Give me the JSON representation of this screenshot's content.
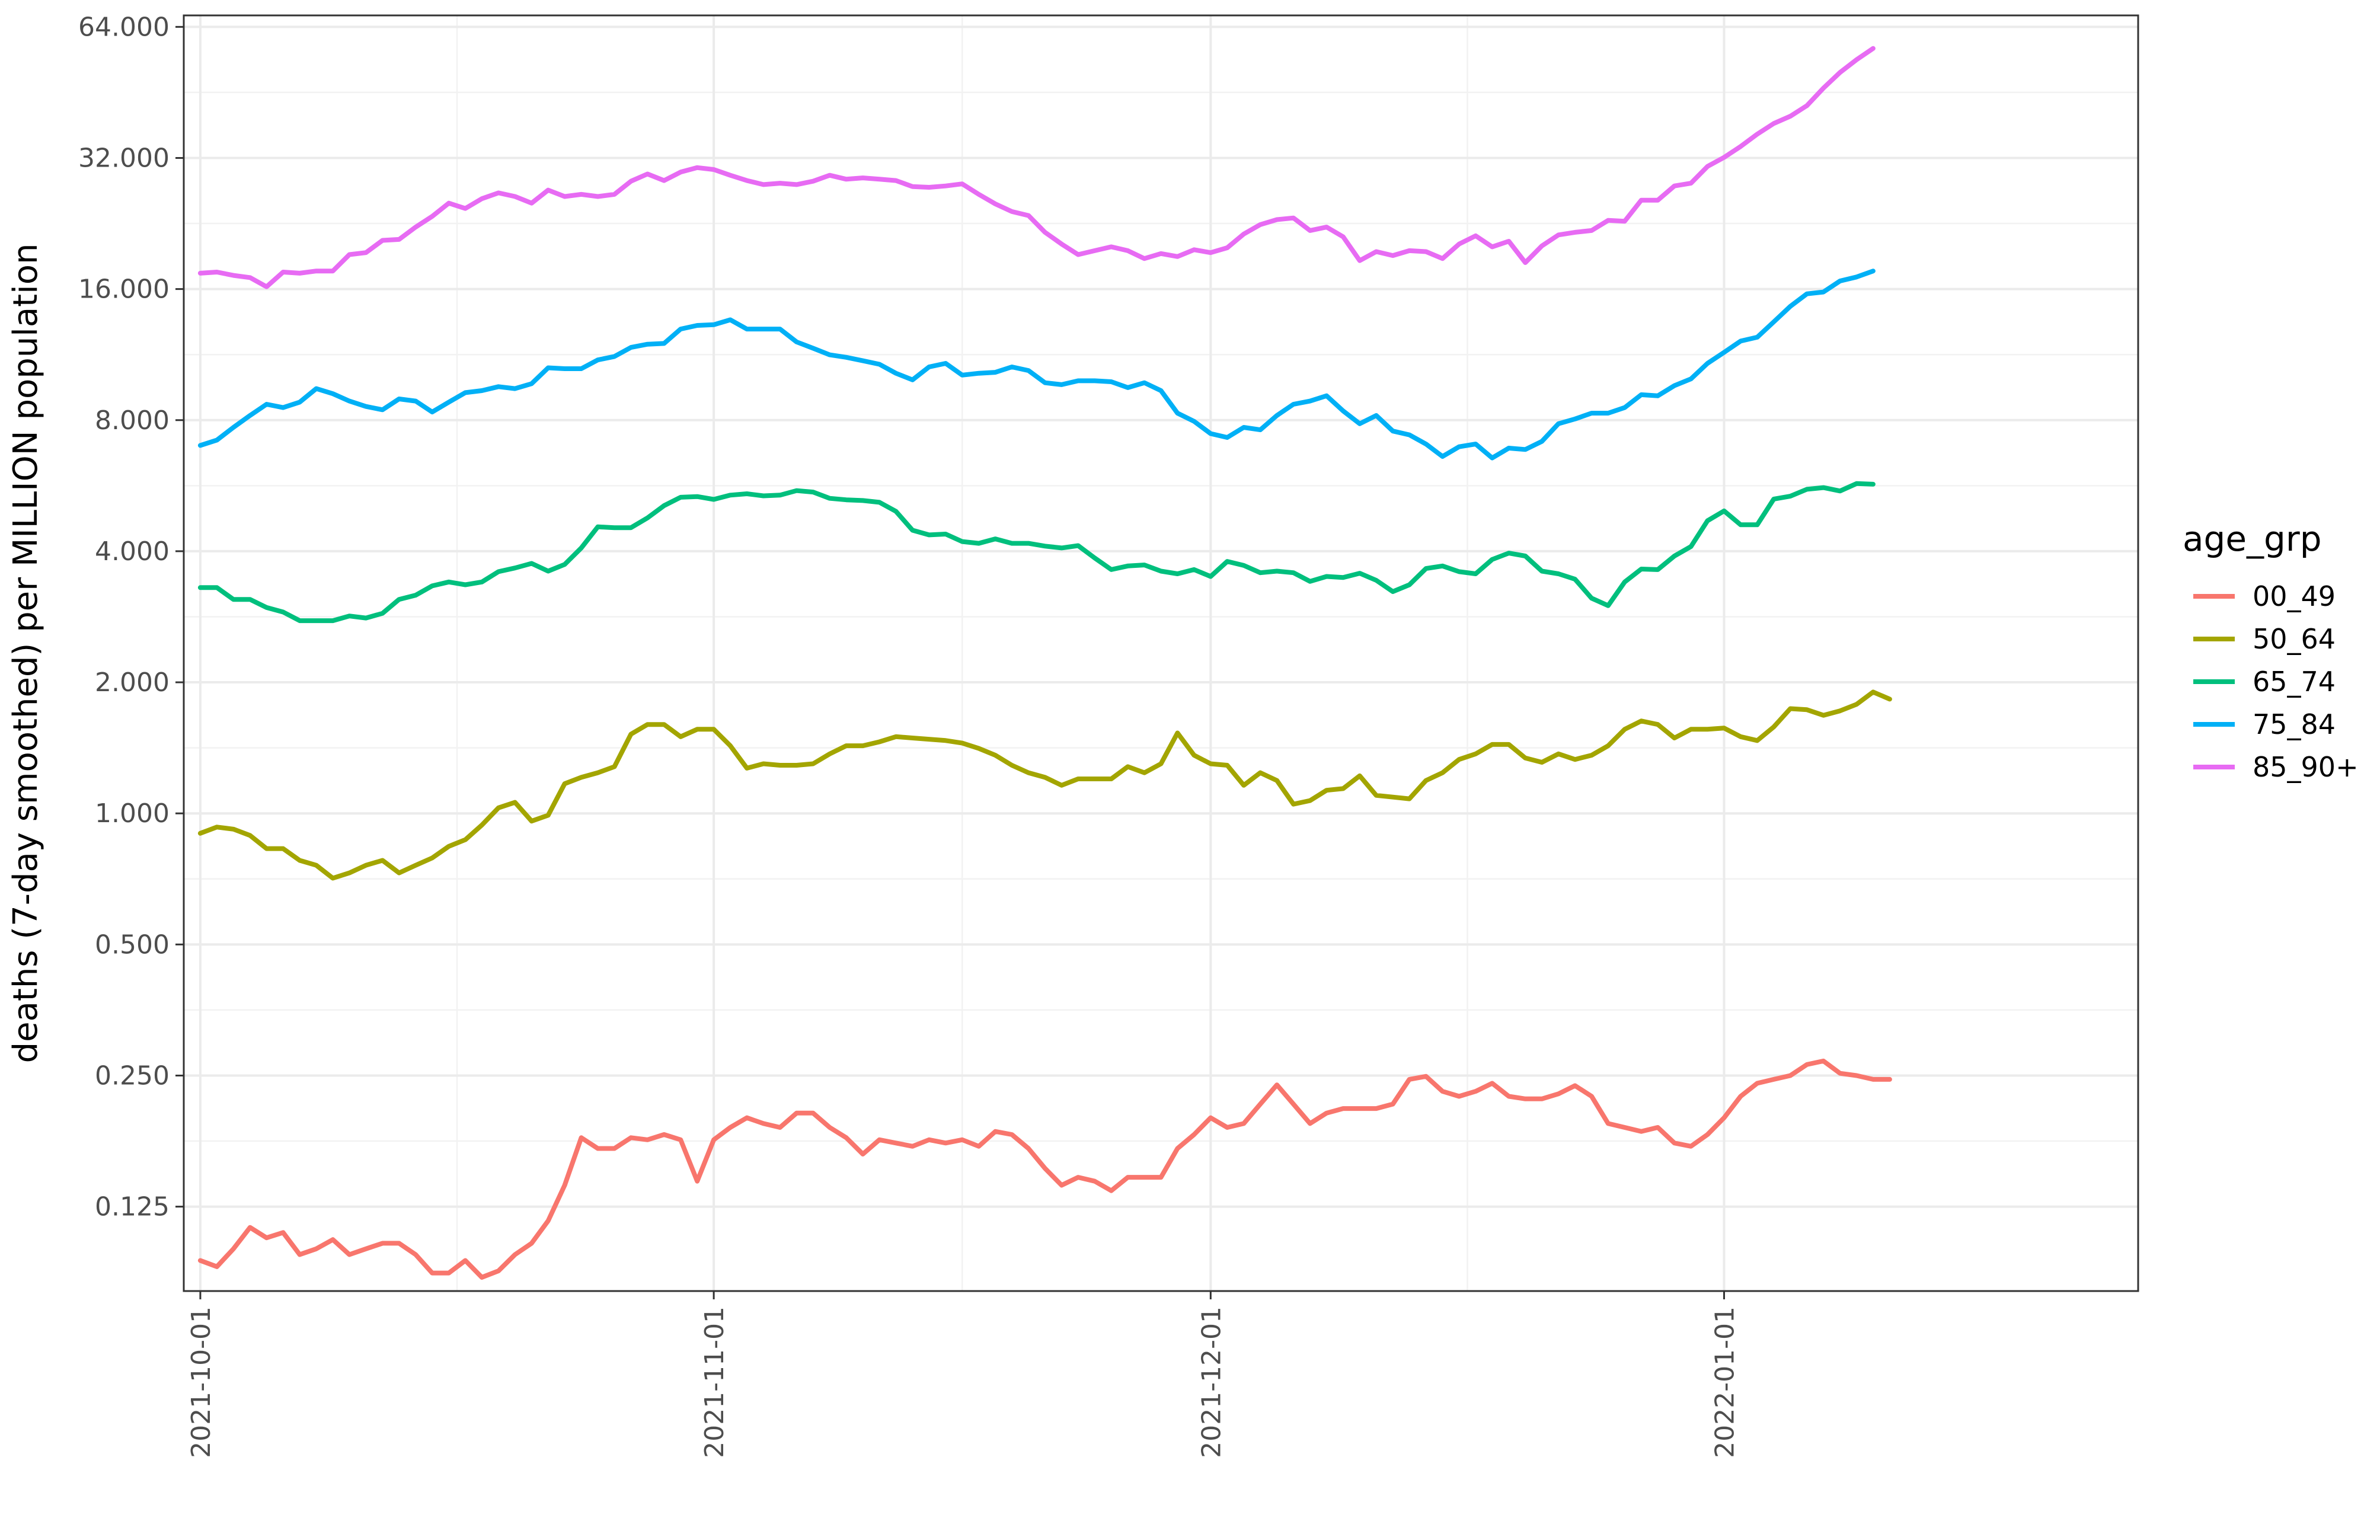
{
  "chart_data": {
    "type": "line",
    "xlabel": "",
    "ylabel": "deaths (7-day smoothed) per MILLION population",
    "y_scale": "log2",
    "ylim": [
      0.08,
      68
    ],
    "xlim": [
      "2021-09-30",
      "2022-01-26"
    ],
    "grid": true,
    "legend_position": "right",
    "legend_title": "age_grp",
    "x_ticks": [
      "2021-10-01",
      "2021-11-01",
      "2021-12-01",
      "2022-01-01"
    ],
    "y_ticks": [
      {
        "value": 0.125,
        "label": "0.125"
      },
      {
        "value": 0.25,
        "label": "0.250"
      },
      {
        "value": 0.5,
        "label": "0.500"
      },
      {
        "value": 1,
        "label": "1.000"
      },
      {
        "value": 2,
        "label": "2.000"
      },
      {
        "value": 4,
        "label": "4.000"
      },
      {
        "value": 8,
        "label": "8.000"
      },
      {
        "value": 16,
        "label": "16.000"
      },
      {
        "value": 32,
        "label": "32.000"
      },
      {
        "value": 64,
        "label": "64.000"
      }
    ],
    "x_start_date": "2021-10-01",
    "x_step_days": 1,
    "series": [
      {
        "name": "00_49",
        "color": "#F8766D",
        "values": [
          0.094,
          0.091,
          0.1,
          0.112,
          0.106,
          0.109,
          0.097,
          0.1,
          0.105,
          0.097,
          0.1,
          0.103,
          0.103,
          0.097,
          0.088,
          0.088,
          0.094,
          0.086,
          0.089,
          0.097,
          0.103,
          0.116,
          0.14,
          0.18,
          0.17,
          0.17,
          0.18,
          0.178,
          0.183,
          0.178,
          0.143,
          0.178,
          0.19,
          0.2,
          0.194,
          0.19,
          0.205,
          0.205,
          0.19,
          0.18,
          0.165,
          0.178,
          0.175,
          0.172,
          0.178,
          0.175,
          0.178,
          0.172,
          0.186,
          0.183,
          0.17,
          0.153,
          0.14,
          0.146,
          0.143,
          0.136,
          0.146,
          0.146,
          0.146,
          0.17,
          0.183,
          0.2,
          0.19,
          0.194,
          0.215,
          0.238,
          0.215,
          0.194,
          0.205,
          0.21,
          0.21,
          0.21,
          0.215,
          0.245,
          0.249,
          0.23,
          0.224,
          0.23,
          0.24,
          0.224,
          0.221,
          0.221,
          0.227,
          0.237,
          0.224,
          0.194,
          0.19,
          0.186,
          0.19,
          0.175,
          0.172,
          0.183,
          0.2,
          0.224,
          0.24,
          0.245,
          0.25,
          0.265,
          0.27,
          0.253,
          0.25,
          0.245,
          0.245
        ]
      },
      {
        "name": "50_64",
        "color": "#A3A500",
        "values": [
          0.9,
          0.93,
          0.92,
          0.89,
          0.83,
          0.83,
          0.78,
          0.76,
          0.71,
          0.73,
          0.76,
          0.78,
          0.73,
          0.76,
          0.79,
          0.84,
          0.87,
          0.94,
          1.03,
          1.06,
          0.96,
          0.99,
          1.17,
          1.21,
          1.24,
          1.28,
          1.52,
          1.6,
          1.6,
          1.5,
          1.56,
          1.56,
          1.43,
          1.27,
          1.3,
          1.29,
          1.29,
          1.3,
          1.37,
          1.43,
          1.43,
          1.46,
          1.5,
          1.49,
          1.48,
          1.47,
          1.45,
          1.41,
          1.36,
          1.29,
          1.24,
          1.21,
          1.16,
          1.2,
          1.2,
          1.2,
          1.28,
          1.24,
          1.3,
          1.53,
          1.36,
          1.3,
          1.29,
          1.16,
          1.24,
          1.19,
          1.05,
          1.07,
          1.13,
          1.14,
          1.22,
          1.1,
          1.09,
          1.08,
          1.19,
          1.24,
          1.33,
          1.37,
          1.44,
          1.44,
          1.34,
          1.31,
          1.37,
          1.33,
          1.36,
          1.43,
          1.56,
          1.63,
          1.6,
          1.49,
          1.56,
          1.56,
          1.57,
          1.5,
          1.47,
          1.58,
          1.74,
          1.73,
          1.68,
          1.72,
          1.78,
          1.9,
          1.83
        ]
      },
      {
        "name": "65_74",
        "color": "#00BF7D",
        "values": [
          3.3,
          3.3,
          3.1,
          3.1,
          2.97,
          2.9,
          2.77,
          2.77,
          2.77,
          2.84,
          2.81,
          2.88,
          3.1,
          3.17,
          3.33,
          3.4,
          3.35,
          3.4,
          3.59,
          3.66,
          3.75,
          3.6,
          3.73,
          4.07,
          4.55,
          4.53,
          4.53,
          4.77,
          5.09,
          5.32,
          5.34,
          5.26,
          5.38,
          5.42,
          5.36,
          5.38,
          5.51,
          5.47,
          5.29,
          5.25,
          5.23,
          5.18,
          4.94,
          4.47,
          4.36,
          4.38,
          4.21,
          4.17,
          4.27,
          4.17,
          4.17,
          4.11,
          4.07,
          4.12,
          3.86,
          3.63,
          3.7,
          3.72,
          3.6,
          3.55,
          3.63,
          3.5,
          3.79,
          3.71,
          3.57,
          3.6,
          3.57,
          3.41,
          3.5,
          3.48,
          3.56,
          3.43,
          3.23,
          3.35,
          3.65,
          3.7,
          3.59,
          3.55,
          3.83,
          3.96,
          3.9,
          3.6,
          3.55,
          3.45,
          3.12,
          3.0,
          3.4,
          3.64,
          3.63,
          3.9,
          4.1,
          4.7,
          4.95,
          4.6,
          4.6,
          5.27,
          5.35,
          5.55,
          5.6,
          5.5,
          5.72,
          5.7
        ]
      },
      {
        "name": "75_84",
        "color": "#00B0F6",
        "values": [
          7.0,
          7.2,
          7.7,
          8.2,
          8.7,
          8.55,
          8.8,
          9.45,
          9.2,
          8.85,
          8.6,
          8.45,
          8.95,
          8.85,
          8.35,
          8.8,
          9.25,
          9.35,
          9.55,
          9.45,
          9.7,
          10.55,
          10.5,
          10.5,
          11.0,
          11.2,
          11.75,
          11.95,
          12.0,
          12.95,
          13.2,
          13.25,
          13.6,
          12.95,
          12.95,
          12.95,
          12.1,
          11.7,
          11.3,
          11.15,
          10.95,
          10.75,
          10.25,
          9.9,
          10.6,
          10.8,
          10.15,
          10.25,
          10.3,
          10.6,
          10.4,
          9.75,
          9.65,
          9.85,
          9.85,
          9.8,
          9.5,
          9.75,
          9.35,
          8.3,
          7.95,
          7.45,
          7.3,
          7.7,
          7.6,
          8.2,
          8.7,
          8.85,
          9.1,
          8.4,
          7.85,
          8.2,
          7.55,
          7.4,
          7.05,
          6.6,
          6.95,
          7.05,
          6.55,
          6.9,
          6.85,
          7.15,
          7.85,
          8.05,
          8.3,
          8.3,
          8.55,
          9.15,
          9.1,
          9.6,
          9.95,
          10.8,
          11.45,
          12.15,
          12.4,
          13.45,
          14.6,
          15.6,
          15.75,
          16.7,
          17.05,
          17.6
        ]
      },
      {
        "name": "85_90+",
        "color": "#E76BF3",
        "values": [
          17.4,
          17.5,
          17.2,
          17.0,
          16.2,
          17.5,
          17.4,
          17.6,
          17.6,
          19.2,
          19.4,
          20.7,
          20.8,
          22.2,
          23.5,
          25.2,
          24.5,
          25.8,
          26.6,
          26.1,
          25.2,
          27.0,
          26.1,
          26.4,
          26.1,
          26.4,
          28.3,
          29.4,
          28.4,
          29.7,
          30.4,
          30.1,
          29.2,
          28.4,
          27.8,
          28.0,
          27.8,
          28.3,
          29.2,
          28.6,
          28.8,
          28.6,
          28.4,
          27.5,
          27.4,
          27.6,
          27.9,
          26.4,
          25.1,
          24.1,
          23.6,
          21.6,
          20.3,
          19.2,
          19.6,
          20.0,
          19.6,
          18.8,
          19.3,
          19.0,
          19.7,
          19.4,
          19.9,
          21.4,
          22.5,
          23.1,
          23.3,
          21.8,
          22.2,
          21.1,
          18.6,
          19.5,
          19.1,
          19.6,
          19.5,
          18.8,
          20.3,
          21.2,
          20.0,
          20.6,
          18.4,
          20.1,
          21.3,
          21.6,
          21.8,
          23.0,
          22.9,
          25.6,
          25.6,
          27.6,
          28.0,
          30.6,
          32.1,
          34.0,
          36.3,
          38.4,
          39.9,
          42.2,
          46.3,
          50.3,
          53.8,
          57.1
        ]
      }
    ]
  }
}
